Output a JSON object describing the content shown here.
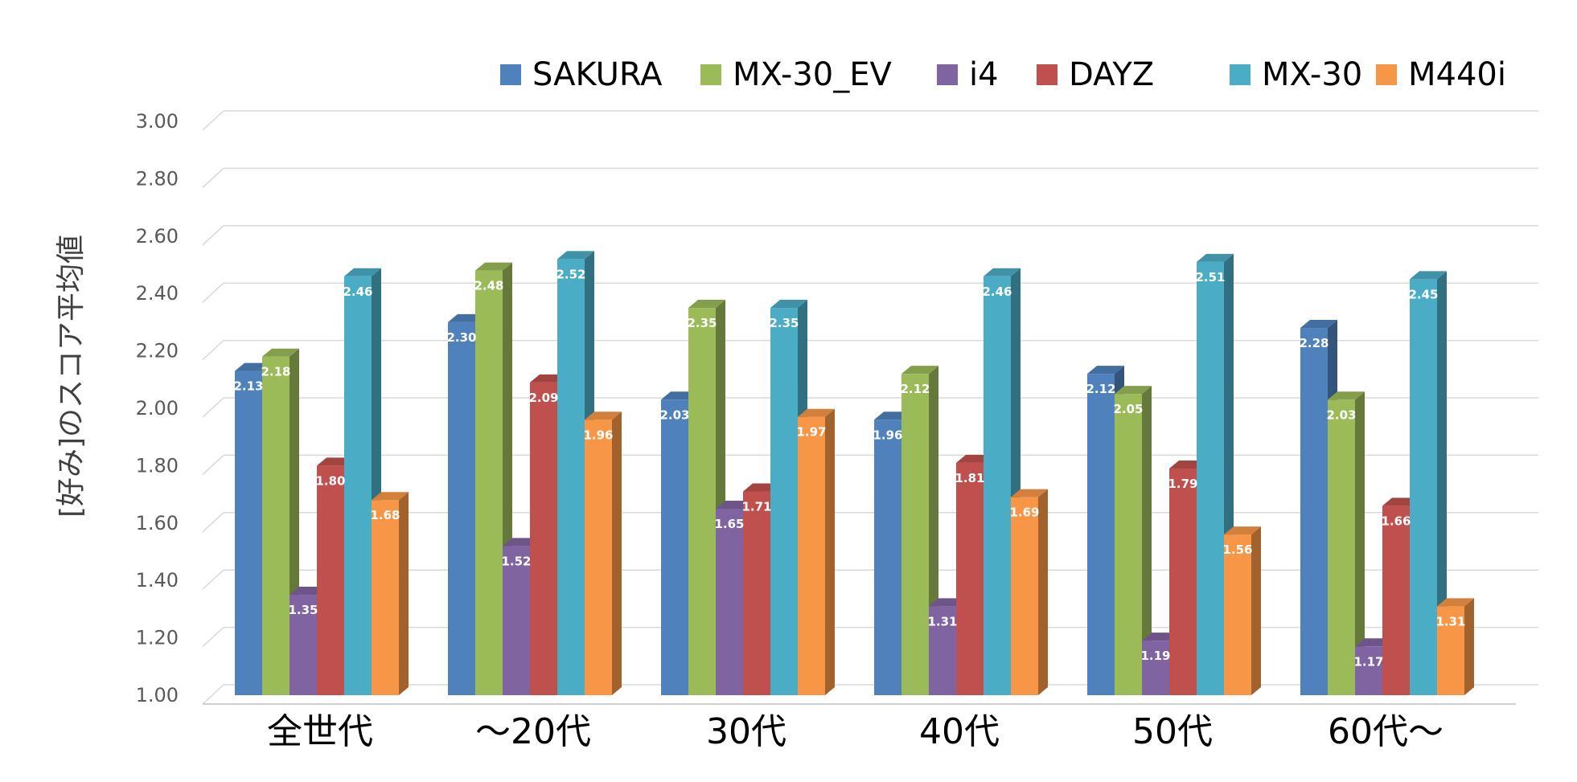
{
  "chart_data": {
    "type": "bar",
    "title": "",
    "xlabel": "",
    "ylabel": "[好み]のスコア平均値",
    "ylim": [
      1.0,
      3.0
    ],
    "yticks": [
      "1.00",
      "1.20",
      "1.40",
      "1.60",
      "1.80",
      "2.00",
      "2.20",
      "2.40",
      "2.60",
      "2.80",
      "3.00"
    ],
    "grid": true,
    "legend_position": "top",
    "style": "3d-clustered-column",
    "categories": [
      "全世代",
      "～20代",
      "30代",
      "40代",
      "50代",
      "60代～"
    ],
    "series": [
      {
        "name": "SAKURA",
        "color": "#4F81BD",
        "values": [
          2.13,
          2.3,
          2.03,
          1.96,
          2.12,
          2.28
        ],
        "labels": [
          "2.13",
          "2.30",
          "2.03",
          "1.96",
          "2.12",
          "2.28"
        ]
      },
      {
        "name": "MX-30_EV",
        "color": "#9BBB59",
        "values": [
          2.18,
          2.48,
          2.35,
          2.12,
          2.05,
          2.03
        ],
        "labels": [
          "2.18",
          "2.48",
          "2.35",
          "2.12",
          "2.05",
          "2.03"
        ]
      },
      {
        "name": "i4",
        "color": "#8064A2",
        "values": [
          1.35,
          1.52,
          1.65,
          1.31,
          1.19,
          1.17
        ],
        "labels": [
          "1.35",
          "1.52",
          "1.65",
          "1.31",
          "1.19",
          "1.17"
        ]
      },
      {
        "name": "DAYZ",
        "color": "#C0504D",
        "values": [
          1.8,
          2.09,
          1.71,
          1.81,
          1.79,
          1.66
        ],
        "labels": [
          "1.80",
          "2.09",
          "1.71",
          "1.81",
          "1.79",
          "1.66"
        ]
      },
      {
        "name": "MX-30",
        "color": "#4BACC6",
        "values": [
          2.46,
          2.52,
          2.35,
          2.46,
          2.51,
          2.45
        ],
        "labels": [
          "2.46",
          "2.52",
          "2.35",
          "2.46",
          "2.51",
          "2.45"
        ]
      },
      {
        "name": "M440i",
        "color": "#F79646",
        "values": [
          1.68,
          1.96,
          1.97,
          1.69,
          1.56,
          1.31
        ],
        "labels": [
          "1.68",
          "1.96",
          "1.97",
          "1.69",
          "1.56",
          "1.31"
        ]
      }
    ]
  }
}
